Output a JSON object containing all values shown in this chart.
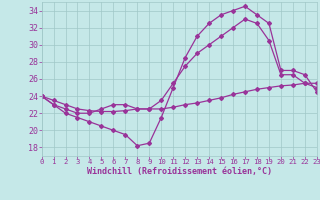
{
  "xlabel": "Windchill (Refroidissement éolien,°C)",
  "xlim": [
    0,
    23
  ],
  "ylim": [
    17,
    35
  ],
  "xticks": [
    0,
    1,
    2,
    3,
    4,
    5,
    6,
    7,
    8,
    9,
    10,
    11,
    12,
    13,
    14,
    15,
    16,
    17,
    18,
    19,
    20,
    21,
    22,
    23
  ],
  "yticks": [
    18,
    20,
    22,
    24,
    26,
    28,
    30,
    32,
    34
  ],
  "background_color": "#c5e8e8",
  "grid_color": "#a0c8c8",
  "line_color": "#993399",
  "lines": [
    {
      "x": [
        0,
        1,
        2,
        3,
        4,
        5,
        6,
        7,
        8,
        9,
        10,
        11,
        12,
        13,
        14,
        15,
        16,
        17,
        18,
        19,
        20,
        21,
        22,
        23
      ],
      "y": [
        24,
        23.5,
        23.0,
        22.5,
        22.3,
        22.2,
        22.2,
        22.3,
        22.5,
        22.5,
        22.5,
        22.7,
        23.0,
        23.2,
        23.5,
        23.8,
        24.2,
        24.5,
        24.8,
        25.0,
        25.2,
        25.3,
        25.5,
        25.5
      ]
    },
    {
      "x": [
        0,
        1,
        2,
        3,
        4,
        5,
        6,
        7,
        8,
        9,
        10,
        11,
        12,
        13,
        14,
        15,
        16,
        17,
        18,
        19,
        20,
        21,
        22,
        23
      ],
      "y": [
        24,
        23.0,
        22.5,
        22.0,
        22.0,
        22.5,
        23.0,
        23.0,
        22.5,
        22.5,
        23.5,
        25.5,
        27.5,
        29.0,
        30.0,
        31.0,
        32.0,
        33.0,
        32.5,
        30.5,
        26.5,
        26.5,
        25.5,
        25.0
      ]
    },
    {
      "x": [
        0,
        1,
        2,
        3,
        4,
        5,
        6,
        7,
        8,
        9,
        10,
        11,
        12,
        13,
        14,
        15,
        16,
        17,
        18,
        19,
        20,
        21,
        22,
        23
      ],
      "y": [
        24,
        23.0,
        22.0,
        21.5,
        21.0,
        20.5,
        20.0,
        19.5,
        18.2,
        18.5,
        21.5,
        25.0,
        28.5,
        31.0,
        32.5,
        33.5,
        34.0,
        34.5,
        33.5,
        32.5,
        27.0,
        27.0,
        26.5,
        24.5
      ]
    }
  ],
  "marker": "D",
  "marker_size": 2.0,
  "line_width": 0.9,
  "font_size_ticks_x": 5.2,
  "font_size_ticks_y": 6.0,
  "font_size_label": 6.0
}
